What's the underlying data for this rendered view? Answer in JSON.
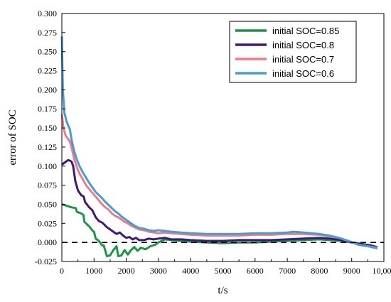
{
  "chart_data": {
    "type": "line",
    "title": "",
    "xlabel": "t/s",
    "ylabel": "error of SOC",
    "xlim": [
      0,
      10000
    ],
    "ylim": [
      -0.025,
      0.3
    ],
    "x_ticks": [
      0,
      1000,
      2000,
      3000,
      4000,
      5000,
      6000,
      7000,
      8000,
      9000,
      10000
    ],
    "x_tick_labels": [
      "0",
      "1000",
      "2000",
      "3000",
      "4000",
      "5000",
      "6000",
      "7000",
      "8000",
      "9000",
      "10,000"
    ],
    "y_ticks": [
      -0.025,
      0,
      0.025,
      0.05,
      0.075,
      0.1,
      0.125,
      0.15,
      0.175,
      0.2,
      0.225,
      0.25,
      0.275,
      0.3
    ],
    "y_tick_labels": [
      "-0.025",
      "0.000",
      "0.025",
      "0.050",
      "0.075",
      "0.100",
      "0.125",
      "0.150",
      "0.175",
      "0.200",
      "0.225",
      "0.250",
      "0.275",
      "0.300"
    ],
    "reference_line": {
      "y": 0,
      "style": "dashed",
      "color": "#000000"
    },
    "grid": false,
    "legend_position": "top-right",
    "series": [
      {
        "name": "initial SOC=0.85",
        "color": "#1e9447",
        "points": [
          [
            0,
            0.05
          ],
          [
            150,
            0.048
          ],
          [
            300,
            0.046
          ],
          [
            430,
            0.045
          ],
          [
            470,
            0.04
          ],
          [
            600,
            0.038
          ],
          [
            670,
            0.036
          ],
          [
            700,
            0.027
          ],
          [
            850,
            0.021
          ],
          [
            960,
            0.015
          ],
          [
            1000,
            0.014
          ],
          [
            1050,
            0.005
          ],
          [
            1150,
            0.002
          ],
          [
            1250,
            -0.004
          ],
          [
            1300,
            -0.004
          ],
          [
            1400,
            -0.018
          ],
          [
            1500,
            -0.017
          ],
          [
            1600,
            -0.01
          ],
          [
            1700,
            -0.005
          ],
          [
            1750,
            -0.018
          ],
          [
            1850,
            -0.017
          ],
          [
            1950,
            -0.01
          ],
          [
            2050,
            -0.016
          ],
          [
            2150,
            -0.01
          ],
          [
            2250,
            -0.006
          ],
          [
            2350,
            -0.011
          ],
          [
            2450,
            -0.007
          ],
          [
            2600,
            -0.009
          ],
          [
            2750,
            -0.005
          ],
          [
            2900,
            -0.003
          ],
          [
            3000,
            0
          ],
          [
            3200,
            0.004
          ],
          [
            3400,
            0.003
          ],
          [
            3700,
            0.002
          ],
          [
            4000,
            0.001
          ],
          [
            4500,
            0
          ],
          [
            5000,
            -0.001
          ],
          [
            5500,
            0
          ],
          [
            6000,
            0
          ],
          [
            6500,
            0.001
          ],
          [
            7000,
            0.002
          ],
          [
            7500,
            0.003
          ],
          [
            8000,
            0.004
          ],
          [
            8300,
            0.003
          ],
          [
            8700,
            0.002
          ],
          [
            9000,
            0
          ],
          [
            9300,
            -0.002
          ],
          [
            9600,
            -0.004
          ],
          [
            9800,
            -0.006
          ]
        ]
      },
      {
        "name": "initial SOC=0.8",
        "color": "#3d1a78",
        "points": [
          [
            0,
            0.102
          ],
          [
            100,
            0.105
          ],
          [
            200,
            0.108
          ],
          [
            300,
            0.106
          ],
          [
            350,
            0.1
          ],
          [
            420,
            0.08
          ],
          [
            500,
            0.068
          ],
          [
            600,
            0.062
          ],
          [
            680,
            0.06
          ],
          [
            720,
            0.053
          ],
          [
            850,
            0.046
          ],
          [
            950,
            0.042
          ],
          [
            1050,
            0.033
          ],
          [
            1150,
            0.028
          ],
          [
            1250,
            0.026
          ],
          [
            1350,
            0.022
          ],
          [
            1400,
            0.02
          ],
          [
            1500,
            0.017
          ],
          [
            1600,
            0.014
          ],
          [
            1700,
            0.011
          ],
          [
            1800,
            0.013
          ],
          [
            1900,
            0.009
          ],
          [
            2000,
            0.006
          ],
          [
            2100,
            0.007
          ],
          [
            2200,
            0.004
          ],
          [
            2300,
            0.006
          ],
          [
            2400,
            0.003
          ],
          [
            2550,
            0.003
          ],
          [
            2700,
            0.005
          ],
          [
            2850,
            0.004
          ],
          [
            3000,
            0.005
          ],
          [
            3200,
            0.006
          ],
          [
            3400,
            0.004
          ],
          [
            3700,
            0.004
          ],
          [
            4000,
            0.003
          ],
          [
            4500,
            0.002
          ],
          [
            5000,
            0.002
          ],
          [
            5500,
            0.003
          ],
          [
            6000,
            0.003
          ],
          [
            6500,
            0.003
          ],
          [
            7000,
            0.004
          ],
          [
            7500,
            0.005
          ],
          [
            8000,
            0.006
          ],
          [
            8300,
            0.005
          ],
          [
            8700,
            0.003
          ],
          [
            9000,
            0
          ],
          [
            9300,
            -0.002
          ],
          [
            9600,
            -0.004
          ],
          [
            9800,
            -0.007
          ]
        ]
      },
      {
        "name": "initial SOC=0.7",
        "color": "#f07a88",
        "points": [
          [
            0,
            0.168
          ],
          [
            50,
            0.15
          ],
          [
            120,
            0.14
          ],
          [
            250,
            0.132
          ],
          [
            300,
            0.125
          ],
          [
            380,
            0.11
          ],
          [
            470,
            0.098
          ],
          [
            550,
            0.09
          ],
          [
            650,
            0.083
          ],
          [
            750,
            0.075
          ],
          [
            850,
            0.07
          ],
          [
            950,
            0.065
          ],
          [
            1050,
            0.06
          ],
          [
            1150,
            0.055
          ],
          [
            1250,
            0.05
          ],
          [
            1350,
            0.046
          ],
          [
            1450,
            0.043
          ],
          [
            1550,
            0.038
          ],
          [
            1650,
            0.035
          ],
          [
            1750,
            0.033
          ],
          [
            1850,
            0.03
          ],
          [
            1950,
            0.027
          ],
          [
            2050,
            0.025
          ],
          [
            2150,
            0.022
          ],
          [
            2250,
            0.02
          ],
          [
            2400,
            0.017
          ],
          [
            2550,
            0.016
          ],
          [
            2700,
            0.014
          ],
          [
            2850,
            0.013
          ],
          [
            3000,
            0.012
          ],
          [
            3200,
            0.013
          ],
          [
            3400,
            0.012
          ],
          [
            3700,
            0.011
          ],
          [
            4000,
            0.01
          ],
          [
            4500,
            0.009
          ],
          [
            5000,
            0.009
          ],
          [
            5500,
            0.009
          ],
          [
            6000,
            0.01
          ],
          [
            6500,
            0.01
          ],
          [
            7000,
            0.011
          ],
          [
            7500,
            0.011
          ],
          [
            8000,
            0.01
          ],
          [
            8300,
            0.008
          ],
          [
            8600,
            0.006
          ],
          [
            8900,
            0.002
          ],
          [
            9200,
            -0.003
          ],
          [
            9500,
            -0.005
          ],
          [
            9800,
            -0.007
          ]
        ]
      },
      {
        "name": "initial SOC=0.6",
        "color": "#4a9bd1",
        "points": [
          [
            0,
            0.27
          ],
          [
            30,
            0.2
          ],
          [
            80,
            0.17
          ],
          [
            150,
            0.158
          ],
          [
            250,
            0.148
          ],
          [
            300,
            0.135
          ],
          [
            380,
            0.12
          ],
          [
            470,
            0.108
          ],
          [
            550,
            0.1
          ],
          [
            650,
            0.092
          ],
          [
            750,
            0.085
          ],
          [
            850,
            0.078
          ],
          [
            950,
            0.072
          ],
          [
            1050,
            0.066
          ],
          [
            1150,
            0.062
          ],
          [
            1250,
            0.058
          ],
          [
            1350,
            0.053
          ],
          [
            1450,
            0.049
          ],
          [
            1550,
            0.045
          ],
          [
            1650,
            0.041
          ],
          [
            1750,
            0.038
          ],
          [
            1850,
            0.034
          ],
          [
            1950,
            0.031
          ],
          [
            2050,
            0.028
          ],
          [
            2150,
            0.025
          ],
          [
            2250,
            0.022
          ],
          [
            2400,
            0.019
          ],
          [
            2550,
            0.018
          ],
          [
            2700,
            0.016
          ],
          [
            2850,
            0.015
          ],
          [
            3000,
            0.016
          ],
          [
            3200,
            0.015
          ],
          [
            3400,
            0.014
          ],
          [
            3700,
            0.013
          ],
          [
            4000,
            0.012
          ],
          [
            4500,
            0.011
          ],
          [
            5000,
            0.011
          ],
          [
            5500,
            0.011
          ],
          [
            6000,
            0.012
          ],
          [
            6500,
            0.012
          ],
          [
            7000,
            0.013
          ],
          [
            7200,
            0.014
          ],
          [
            7500,
            0.013
          ],
          [
            8000,
            0.011
          ],
          [
            8300,
            0.009
          ],
          [
            8600,
            0.006
          ],
          [
            8900,
            0.002
          ],
          [
            9200,
            -0.003
          ],
          [
            9500,
            -0.005
          ],
          [
            9800,
            -0.008
          ]
        ]
      }
    ]
  }
}
